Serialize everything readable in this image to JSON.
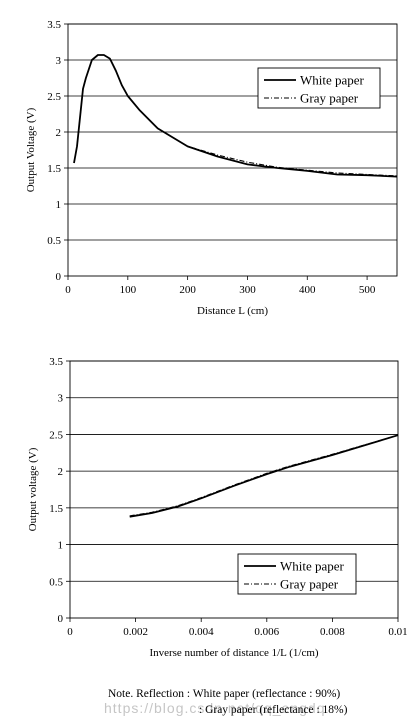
{
  "chart_data": [
    {
      "type": "line",
      "title": "",
      "xlabel": "Distance L (cm)",
      "ylabel": "Output Voltage (V)",
      "xlim": [
        0,
        550
      ],
      "ylim": [
        0,
        3.5
      ],
      "xticks": [
        0,
        100,
        200,
        300,
        400,
        500
      ],
      "xtick_labels": [
        "0",
        "100",
        "200",
        "300",
        "400",
        "500"
      ],
      "yticks": [
        0,
        0.5,
        1,
        1.5,
        2,
        2.5,
        3,
        3.5
      ],
      "ytick_labels": [
        "0",
        "0.5",
        "1",
        "1.5",
        "2",
        "2.5",
        "3",
        "3.5"
      ],
      "grid": "horizontal",
      "legend_position": "top-right",
      "series": [
        {
          "name": "White paper",
          "style": "solid",
          "x": [
            10,
            15,
            20,
            25,
            30,
            40,
            50,
            60,
            70,
            80,
            90,
            100,
            120,
            150,
            200,
            250,
            300,
            350,
            400,
            450,
            500,
            550
          ],
          "y": [
            1.57,
            1.8,
            2.2,
            2.6,
            2.75,
            3.0,
            3.07,
            3.07,
            3.02,
            2.85,
            2.65,
            2.5,
            2.3,
            2.05,
            1.8,
            1.66,
            1.55,
            1.5,
            1.46,
            1.41,
            1.4,
            1.38
          ]
        },
        {
          "name": "Gray paper",
          "style": "dash-dot",
          "x": [
            10,
            15,
            20,
            25,
            30,
            40,
            50,
            60,
            70,
            80,
            90,
            100,
            120,
            150,
            200,
            250,
            300,
            350,
            400,
            450,
            500,
            550
          ],
          "y": [
            1.57,
            1.8,
            2.2,
            2.6,
            2.75,
            3.0,
            3.07,
            3.07,
            3.02,
            2.85,
            2.65,
            2.5,
            2.3,
            2.05,
            1.8,
            1.68,
            1.58,
            1.51,
            1.47,
            1.43,
            1.41,
            1.39
          ]
        }
      ]
    },
    {
      "type": "line",
      "title": "",
      "xlabel": "Inverse number of distance 1/L (1/cm)",
      "ylabel": "Output voltage (V)",
      "xlim": [
        0,
        0.01
      ],
      "ylim": [
        0,
        3.5
      ],
      "xticks": [
        0,
        0.002,
        0.004,
        0.006,
        0.008,
        0.01
      ],
      "xtick_labels": [
        "0",
        "0.002",
        "0.004",
        "0.006",
        "0.008",
        "0.01"
      ],
      "yticks": [
        0,
        0.5,
        1,
        1.5,
        2,
        2.5,
        3,
        3.5
      ],
      "ytick_labels": [
        "0",
        "0.5",
        "1",
        "1.5",
        "2",
        "2.5",
        "3",
        "3.5"
      ],
      "grid": "horizontal",
      "legend_position": "bottom-right",
      "series": [
        {
          "name": "White paper",
          "style": "solid",
          "x": [
            0.00182,
            0.0025,
            0.0033,
            0.004,
            0.005,
            0.006,
            0.0067,
            0.008,
            0.01
          ],
          "y": [
            1.38,
            1.43,
            1.52,
            1.63,
            1.8,
            1.96,
            2.06,
            2.22,
            2.49
          ]
        },
        {
          "name": "Gray paper",
          "style": "dash-dot",
          "x": [
            0.00182,
            0.0025,
            0.0033,
            0.004,
            0.005,
            0.006,
            0.0067,
            0.008,
            0.01
          ],
          "y": [
            1.39,
            1.44,
            1.53,
            1.64,
            1.81,
            1.97,
            2.07,
            2.23,
            2.49
          ]
        }
      ]
    }
  ],
  "note": {
    "line1": "Note. Reflection : White paper (reflectance : 90%)",
    "line2": ": Gray paper (reflectance : 18%)"
  },
  "watermark": "https://blog.csdn.net/qq_engdq"
}
